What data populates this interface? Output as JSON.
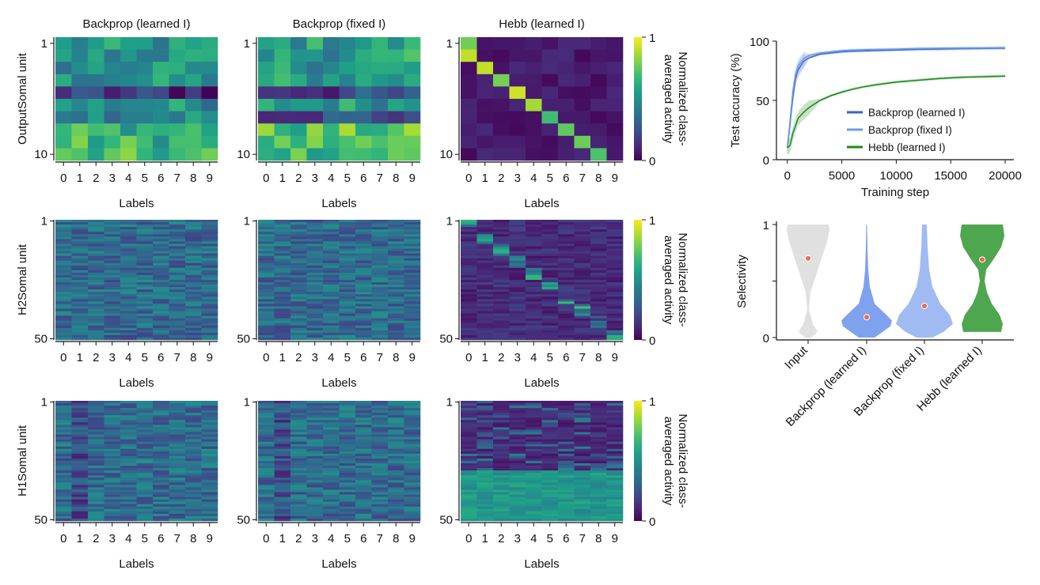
{
  "colorbar": {
    "label_line1": "Normalized class-",
    "label_line2": "averaged activity",
    "min_label": "0",
    "max_label": "1"
  },
  "heatmap_grid": {
    "column_titles": [
      "Backprop (learned I)",
      "Backprop (fixed I)",
      "Hebb (learned I)"
    ],
    "row_labels": [
      "OutputSomal unit",
      "H2Somal unit",
      "H1Somal unit"
    ],
    "x_label": "Labels",
    "x_ticks": [
      "0",
      "1",
      "2",
      "3",
      "4",
      "5",
      "6",
      "7",
      "8",
      "9"
    ],
    "y_ticks": [
      [
        "1",
        "10"
      ],
      [
        "1",
        "50"
      ],
      [
        "1",
        "50"
      ]
    ]
  },
  "colors": {
    "backprop_learned": "#3b63c9",
    "backprop_fixed": "#6b9be6",
    "hebb": "#1b8a1b",
    "violin_input": "#e0e0e0",
    "violin_bp_learned": "#7fa2ee",
    "violin_bp_fixed": "#9fbbf2",
    "violin_hebb": "#4ea64e",
    "median_dot": "#f0684f"
  },
  "chart_data": [
    {
      "type": "line",
      "ylabel": "Test accuracy (%)",
      "xlabel": "Training step",
      "xlim": [
        -1000,
        20800
      ],
      "ylim": [
        0,
        100
      ],
      "x_ticks": [
        "0",
        "5000",
        "10000",
        "15000",
        "20000"
      ],
      "y_ticks": [
        "0",
        "50",
        "100"
      ],
      "legend": [
        "Backprop (learned I)",
        "Backprop (fixed I)",
        "Hebb (learned I)"
      ],
      "legend_position": "lower-right",
      "series": [
        {
          "name": "Backprop (learned I)",
          "x": [
            0,
            250,
            500,
            750,
            1000,
            1500,
            2000,
            3000,
            4000,
            5000,
            6000,
            8000,
            10000,
            12000,
            14000,
            16000,
            18000,
            20000
          ],
          "y": [
            10,
            30,
            52,
            68,
            76,
            83,
            86,
            89,
            90,
            91,
            91.5,
            92,
            92.5,
            93,
            93.3,
            93.6,
            93.8,
            94
          ]
        },
        {
          "name": "Backprop (fixed I)",
          "x": [
            0,
            250,
            500,
            750,
            1000,
            1500,
            2000,
            3000,
            4000,
            5000,
            6000,
            8000,
            10000,
            12000,
            14000,
            16000,
            18000,
            20000
          ],
          "y": [
            10,
            33,
            57,
            72,
            79,
            85,
            88,
            90,
            91,
            92,
            92.5,
            93,
            93.3,
            93.8,
            94,
            94.2,
            94.3,
            94.5
          ]
        },
        {
          "name": "Hebb (learned I)",
          "x": [
            0,
            250,
            500,
            1000,
            1500,
            2000,
            3000,
            4000,
            5000,
            6000,
            7000,
            8000,
            10000,
            12000,
            14000,
            16000,
            18000,
            20000
          ],
          "y": [
            10,
            12,
            22,
            35,
            40,
            44,
            50,
            54,
            57,
            59.5,
            61.5,
            63,
            65.5,
            67,
            68.5,
            69.5,
            70,
            70.5
          ]
        }
      ]
    },
    {
      "type": "violin",
      "ylabel": "Selectivity",
      "ylim": [
        0,
        1
      ],
      "y_ticks": [
        "0",
        "1"
      ],
      "categories": [
        "Input",
        "Backprop (learned I)",
        "Backprop (fixed I)",
        "Hebb (learned I)"
      ],
      "medians": [
        0.7,
        0.18,
        0.28,
        0.69
      ]
    }
  ]
}
